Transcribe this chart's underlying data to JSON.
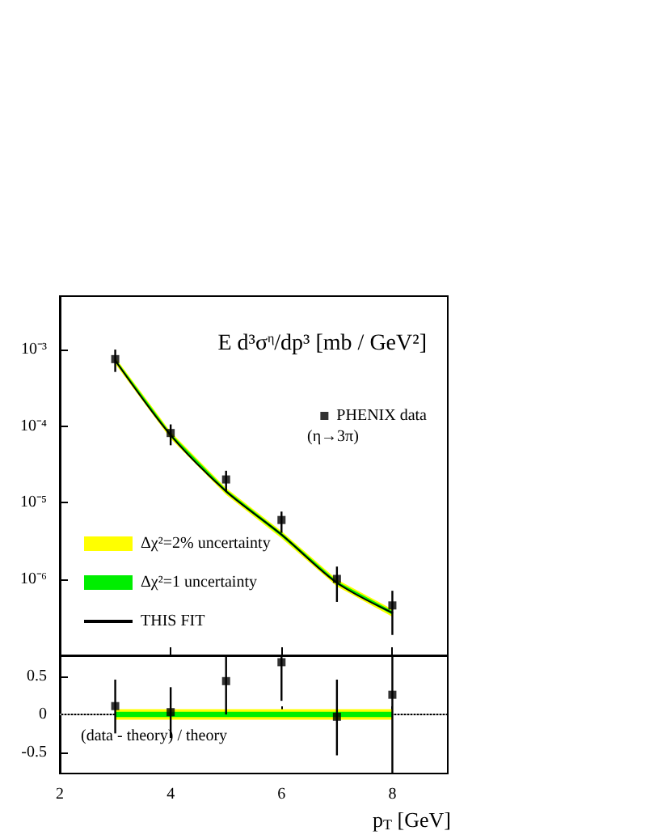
{
  "chart_data": [
    {
      "type": "scatter",
      "ylabel": "E d³σ$^{η}$/dp³ [mb / GeV²]",
      "log": "y",
      "xlim": [
        2,
        9
      ],
      "xticks": [
        2,
        4,
        6,
        8
      ],
      "ylim": [
        1e-07,
        0.005
      ],
      "yticks": [
        {
          "value": 0.001,
          "label": "10⁻³"
        },
        {
          "value": 0.0001,
          "label": "10⁻⁴"
        },
        {
          "value": 1e-05,
          "label": "10⁻⁵"
        },
        {
          "value": 1e-06,
          "label": "10⁻⁶"
        }
      ],
      "tick_labels": "y",
      "legend": "bottom left",
      "annotations": [
        "(η→3π)"
      ],
      "series": [
        {
          "name": "Δχ²=2% uncertainty",
          "type": "area",
          "color": "#ffff00",
          "x": [
            3,
            4,
            5,
            6,
            7,
            8
          ],
          "values": [
            null,
            null,
            null,
            null,
            null,
            null
          ],
          "lower": [
            0.00065,
            6.8e-05,
            1.26e-05,
            3.4e-06,
            8e-07,
            3.2e-07
          ],
          "upper": [
            0.00079,
            8.4e-05,
            1.54e-05,
            4.2e-06,
            9.8e-07,
            4e-07
          ]
        },
        {
          "name": "Δχ²=1 uncertainty",
          "type": "area",
          "color": "#00ee00",
          "x": [
            3,
            4,
            5,
            6,
            7,
            8
          ],
          "values": [
            null,
            null,
            null,
            null,
            null,
            null
          ],
          "lower": [
            0.000685,
            7.2e-05,
            1.33e-05,
            3.6e-06,
            8.5e-07,
            3.4e-07
          ],
          "upper": [
            0.000755,
            8e-05,
            1.47e-05,
            4e-06,
            9.3e-07,
            3.8e-07
          ]
        },
        {
          "name": "THIS FIT",
          "type": "line",
          "color": "#000000",
          "x": [
            3,
            4,
            5,
            6,
            7,
            8
          ],
          "values": [
            0.00072,
            7.6e-05,
            1.4e-05,
            3.8e-06,
            8.9e-07,
            3.6e-07
          ]
        },
        {
          "name": "PHENIX data",
          "color": "#000000",
          "marker": "square",
          "x": [
            3,
            4,
            5,
            6,
            7,
            8
          ],
          "values": [
            0.00075,
            8.1e-05,
            2e-05,
            5.9e-06,
            1e-06,
            4.5e-07
          ],
          "errors": [
            [
              0.00051,
              0.001
            ],
            [
              5.6e-05,
              0.000105
            ],
            [
              1.4e-05,
              2.6e-05
            ],
            [
              4e-06,
              7.6e-06
            ],
            [
              5e-07,
              1.45e-06
            ],
            [
              1.85e-07,
              7e-07
            ]
          ]
        }
      ]
    },
    {
      "type": "scatter",
      "xlabel": "p$_{T}$ [GeV]",
      "xlim": [
        2,
        9
      ],
      "xticks": [
        2,
        4,
        6,
        8
      ],
      "ylim": [
        -0.78,
        0.78
      ],
      "yticks": [
        -0.5,
        0,
        0.5
      ],
      "annotations": [
        "(data - theory) / theory"
      ],
      "ref_lines": [
        {
          "axis": "y",
          "value": 0,
          "color": "#999999",
          "line_style": "dotted"
        }
      ],
      "series": [
        {
          "type": "area",
          "color": "#ffff00",
          "x": [
            3,
            8
          ],
          "values": [
            null,
            null
          ],
          "lower": [
            -0.07,
            -0.07
          ],
          "upper": [
            0.07,
            0.07
          ]
        },
        {
          "type": "area",
          "color": "#00ee00",
          "x": [
            3,
            8
          ],
          "values": [
            null,
            null
          ],
          "lower": [
            -0.035,
            -0.035
          ],
          "upper": [
            0.035,
            0.035
          ]
        },
        {
          "color": "#000000",
          "marker": "square",
          "x": [
            3,
            4,
            5,
            6,
            7,
            8
          ],
          "values": [
            0.11,
            0.03,
            0.44,
            0.69,
            -0.03,
            0.26
          ],
          "errors": [
            [
              -0.25,
              0.46
            ],
            [
              -0.31,
              0.36
            ],
            [
              0,
              0.78
            ],
            [
              0.18,
              0.78
            ],
            [
              -0.54,
              0.46
            ],
            [
              -0.78,
              0.78
            ]
          ]
        }
      ]
    }
  ]
}
